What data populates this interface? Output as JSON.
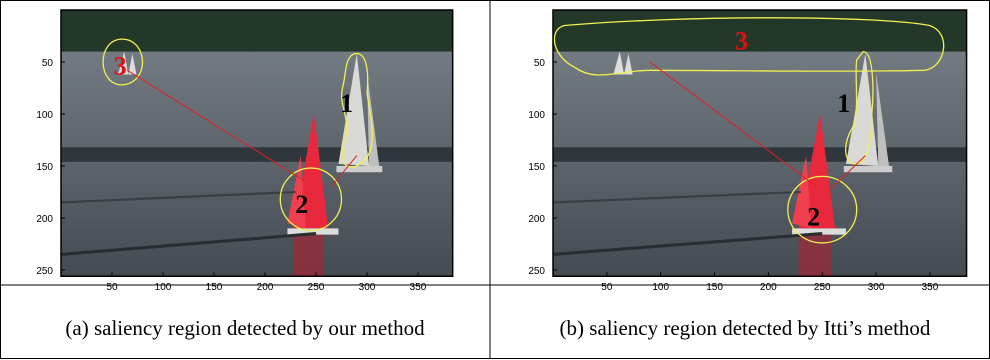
{
  "panels": [
    {
      "yticks": [
        50,
        100,
        150,
        200,
        250
      ],
      "xticks": [
        50,
        100,
        150,
        200,
        250,
        300,
        350
      ],
      "regions": [
        "1",
        "2",
        "3"
      ],
      "caption": "(a) saliency region detected by our method"
    },
    {
      "yticks": [
        50,
        100,
        150,
        200,
        250
      ],
      "xticks": [
        50,
        100,
        150,
        200,
        250,
        300,
        350
      ],
      "regions": [
        "1",
        "2",
        "3"
      ],
      "caption": "(b) saliency region detected by Itti’s method"
    }
  ]
}
